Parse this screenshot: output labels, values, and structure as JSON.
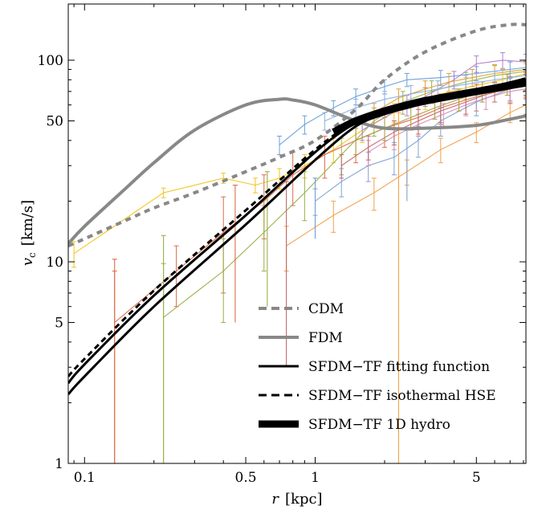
{
  "chart_data": {
    "type": "line",
    "xscale": "log",
    "yscale": "log",
    "xlim": [
      0.085,
      8.2
    ],
    "ylim": [
      1,
      190
    ],
    "xlabel": {
      "var": "r",
      "unit": "[kpc]"
    },
    "ylabel": {
      "var": "v",
      "sub": "c",
      "unit": "[km/s]"
    },
    "xticks": [
      {
        "value": 0.1,
        "label": "0.1"
      },
      {
        "value": 0.5,
        "label": "0.5"
      },
      {
        "value": 1,
        "label": "1"
      },
      {
        "value": 5,
        "label": "5"
      }
    ],
    "yticks": [
      {
        "value": 1,
        "label": "1"
      },
      {
        "value": 5,
        "label": "5"
      },
      {
        "value": 10,
        "label": "10"
      },
      {
        "value": 50,
        "label": "50"
      },
      {
        "value": 100,
        "label": "100"
      }
    ],
    "legend": {
      "position": "lower-right",
      "entries": [
        {
          "label": "CDM",
          "color": "#888888",
          "dash": "dashed",
          "width": 4
        },
        {
          "label": "FDM",
          "color": "#888888",
          "dash": "solid",
          "width": 4
        },
        {
          "label": "SFDM−TF fitting function",
          "color": "#000000",
          "dash": "solid",
          "width": 3
        },
        {
          "label": "SFDM−TF isothermal HSE",
          "color": "#000000",
          "dash": "dashed",
          "width": 3
        },
        {
          "label": "SFDM−TF 1D hydro",
          "color": "#000000",
          "dash": "solid",
          "width": 9
        }
      ]
    },
    "model_curves": [
      {
        "name": "CDM",
        "color": "#888888",
        "dash": "7,6",
        "width": 4,
        "x": [
          0.085,
          0.1,
          0.15,
          0.2,
          0.3,
          0.5,
          0.7,
          1.0,
          1.5,
          2.0,
          3.0,
          5.0,
          7.0,
          8.2
        ],
        "y": [
          12,
          13,
          16,
          18.5,
          22,
          28,
          33,
          40,
          57,
          80,
          110,
          140,
          150,
          150
        ]
      },
      {
        "name": "FDM",
        "color": "#888888",
        "dash": "",
        "width": 4,
        "x": [
          0.085,
          0.1,
          0.15,
          0.2,
          0.3,
          0.5,
          0.7,
          0.8,
          1.0,
          1.5,
          2.0,
          3.0,
          5.0,
          7.0,
          8.2
        ],
        "y": [
          12.3,
          15,
          23,
          31,
          45,
          60,
          64,
          63.5,
          60,
          50,
          46,
          46,
          47.5,
          51,
          53
        ]
      },
      {
        "name": "SFDM−TF fitting function (upper)",
        "color": "#000000",
        "dash": "",
        "width": 3,
        "x": [
          0.085,
          0.1,
          0.2,
          0.5,
          1.0,
          1.5,
          2.0,
          2.5,
          3.0,
          5.0,
          8.2
        ],
        "y": [
          2.5,
          3.1,
          6.8,
          17,
          35,
          49,
          56,
          59,
          62,
          69,
          76
        ]
      },
      {
        "name": "SFDM−TF fitting function (lower)",
        "color": "#000000",
        "dash": "",
        "width": 3,
        "x": [
          0.085,
          0.1,
          0.2,
          0.5,
          1.0,
          1.5,
          2.0,
          2.5,
          3.0,
          5.0,
          8.2
        ],
        "y": [
          2.2,
          2.7,
          6.0,
          15.3,
          32,
          47,
          54,
          58,
          61,
          68,
          75
        ]
      },
      {
        "name": "SFDM−TF isothermal HSE",
        "color": "#000000",
        "dash": "7,5",
        "width": 3,
        "x": [
          0.085,
          0.1,
          0.2,
          0.5,
          1.0,
          1.5,
          2.0,
          2.5,
          3.0,
          5.0,
          8.2
        ],
        "y": [
          2.7,
          3.3,
          7.2,
          18,
          36,
          50,
          57,
          60,
          63,
          70,
          77
        ]
      },
      {
        "name": "SFDM−TF 1D hydro",
        "color": "#000000",
        "dash": "",
        "width": 9,
        "x": [
          1.2,
          1.5,
          2.0,
          2.5,
          3.0,
          4.0,
          5.0,
          6.5,
          8.2
        ],
        "y": [
          44,
          50,
          56,
          60,
          63,
          67,
          70,
          74,
          79
        ]
      }
    ],
    "rotation_curves": [
      {
        "color": "#f2c41c",
        "x": [
          0.09,
          0.22,
          0.4,
          0.55,
          0.7,
          0.9,
          1.2,
          1.6,
          2.2,
          3.0,
          4.5,
          6.5,
          8.2
        ],
        "y": [
          11,
          22,
          26,
          24,
          26,
          30,
          36,
          45,
          55,
          65,
          73,
          80,
          86
        ],
        "err": [
          1.6,
          1.2,
          1.5,
          2,
          3,
          4,
          5,
          6,
          6,
          8,
          9,
          10,
          10
        ]
      },
      {
        "color": "#f3a04a",
        "x": [
          0.75,
          1.2,
          1.8,
          2.5,
          3.5,
          5.0,
          7.0,
          8.2
        ],
        "y": [
          12,
          17,
          22,
          28,
          36,
          44,
          55,
          60
        ],
        "err": [
          3,
          3,
          4,
          4,
          5,
          5,
          6,
          6
        ]
      },
      {
        "color": "#e06a4a",
        "x": [
          0.135,
          0.25,
          0.4,
          0.6,
          0.8,
          1.1,
          1.5,
          2.0,
          2.8,
          3.5,
          5.0,
          7.0,
          8.2
        ],
        "y": [
          5,
          9,
          14,
          20,
          27,
          34,
          40,
          46,
          52,
          58,
          66,
          72,
          76
        ],
        "err": [
          4,
          3,
          7,
          7,
          8,
          8,
          9,
          9,
          10,
          10,
          10,
          11,
          11
        ]
      },
      {
        "color": "#9ab04a",
        "x": [
          0.22,
          0.4,
          0.6,
          0.9,
          1.3,
          1.8,
          2.4,
          3.2,
          4.5,
          6.0,
          8.2
        ],
        "y": [
          5.3,
          9,
          14,
          22,
          34,
          50,
          62,
          70,
          78,
          84,
          88
        ],
        "err": [
          4.5,
          4,
          5,
          6,
          7,
          8,
          8,
          9,
          9,
          10,
          10
        ]
      },
      {
        "color": "#6b9fd8",
        "x": [
          0.7,
          0.9,
          1.2,
          1.5,
          2.0,
          2.5,
          3.5,
          5.0,
          7.0,
          8.2
        ],
        "y": [
          38,
          48,
          58,
          66,
          74,
          80,
          82,
          86,
          90,
          92
        ],
        "err": [
          4,
          5,
          5,
          6,
          6,
          6,
          7,
          7,
          8,
          8
        ]
      },
      {
        "color": "#7fa3d4",
        "x": [
          1.0,
          1.3,
          1.7,
          2.2,
          2.8,
          3.5,
          5.0,
          7.0,
          8.2
        ],
        "y": [
          20,
          25,
          30,
          33,
          40,
          50,
          62,
          72,
          76
        ],
        "err": [
          3,
          4,
          5,
          6,
          7,
          8,
          9,
          9,
          9
        ]
      },
      {
        "color": "#b07fcf",
        "x": [
          1.6,
          2.0,
          2.5,
          3.0,
          4.0,
          5.0,
          6.5,
          8.2
        ],
        "y": [
          45,
          52,
          60,
          66,
          80,
          96,
          100,
          98
        ],
        "err": [
          5,
          6,
          7,
          7,
          8,
          9,
          9,
          9
        ]
      },
      {
        "color": "#d88fb8",
        "x": [
          1.7,
          2.2,
          2.8,
          3.6,
          4.5,
          5.5,
          7.0,
          8.2
        ],
        "y": [
          35,
          42,
          48,
          54,
          60,
          65,
          70,
          72
        ],
        "err": [
          5,
          6,
          6,
          7,
          7,
          8,
          8,
          8
        ]
      },
      {
        "color": "#c06a6a",
        "x": [
          1.3,
          1.7,
          2.2,
          2.8,
          3.5,
          4.5,
          6.0,
          8.2
        ],
        "y": [
          30,
          37,
          44,
          50,
          56,
          62,
          70,
          76
        ],
        "err": [
          4,
          5,
          6,
          7,
          7,
          8,
          8,
          9
        ]
      },
      {
        "color": "#a8a03a",
        "x": [
          1.5,
          2.0,
          2.6,
          3.3,
          4.2,
          5.3,
          6.8,
          8.2
        ],
        "y": [
          40,
          46,
          52,
          58,
          64,
          70,
          76,
          80
        ],
        "err": [
          6,
          6,
          7,
          7,
          8,
          8,
          9,
          9
        ]
      },
      {
        "color": "#e0a030",
        "x": [
          1.8,
          2.3,
          3.0,
          3.8,
          4.8,
          6.0,
          8.2
        ],
        "y": [
          55,
          65,
          72,
          78,
          82,
          86,
          90
        ],
        "err": [
          6,
          7,
          7,
          8,
          8,
          9,
          9
        ]
      },
      {
        "color": "#8fb0e0",
        "x": [
          1.1,
          1.5,
          2.0,
          2.6,
          3.4,
          4.5,
          6.0,
          8.2
        ],
        "y": [
          50,
          58,
          64,
          68,
          72,
          76,
          80,
          84
        ],
        "err": [
          5,
          6,
          6,
          7,
          7,
          8,
          8,
          8
        ]
      }
    ],
    "long_error_bars": [
      {
        "color": "#e06a4a",
        "x": 0.135,
        "y": 5,
        "lo": 1,
        "hi": 10.3
      },
      {
        "color": "#9ab04a",
        "x": 0.22,
        "y": 5.3,
        "lo": 1,
        "hi": 13.5
      },
      {
        "color": "#e06a4a",
        "x": 0.45,
        "y": 15,
        "lo": 5,
        "hi": 24
      },
      {
        "color": "#9ab04a",
        "x": 0.62,
        "y": 12,
        "lo": 6,
        "hi": 28
      },
      {
        "color": "#c06a6a",
        "x": 0.75,
        "y": 16,
        "lo": 3,
        "hi": 25
      },
      {
        "color": "#f3a04a",
        "x": 2.3,
        "y": 40,
        "lo": 1,
        "hi": 55
      },
      {
        "color": "#6b9fd8",
        "x": 1.0,
        "y": 20,
        "lo": 13,
        "hi": 26
      },
      {
        "color": "#7fa3d4",
        "x": 2.5,
        "y": 32,
        "lo": 20,
        "hi": 45
      }
    ]
  }
}
